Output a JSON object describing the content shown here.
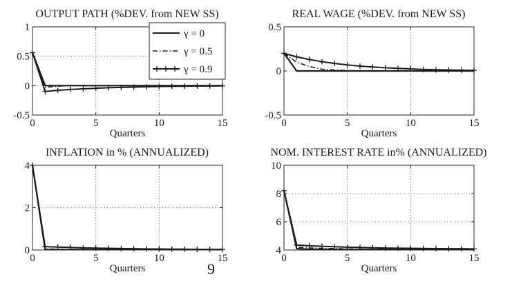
{
  "chart_data": [
    {
      "type": "line",
      "title": "OUTPUT PATH (%DEV. from NEW SS)",
      "xlabel": "Quarters",
      "ylabel": "",
      "xlim": [
        0,
        15
      ],
      "ylim": [
        -0.5,
        1
      ],
      "xticks": [
        "0",
        "5",
        "10",
        "15"
      ],
      "yticks": [
        "-0.5",
        "0",
        "0.5",
        "1"
      ],
      "grid": true,
      "legend": "top-right",
      "x": [
        0,
        1,
        2,
        3,
        4,
        5,
        6,
        7,
        8,
        9,
        10,
        11,
        12,
        13,
        14,
        15
      ],
      "series": [
        {
          "name": "γ = 0",
          "style": "solid",
          "values": [
            0.56,
            0,
            0,
            0,
            0,
            0,
            0,
            0,
            0,
            0,
            0,
            0,
            0,
            0,
            0,
            0
          ]
        },
        {
          "name": "γ = 0.5",
          "style": "dashdot",
          "values": [
            0.56,
            -0.03,
            -0.01,
            0,
            0,
            0,
            0,
            0,
            0,
            0,
            0,
            0,
            0,
            0,
            0,
            0
          ]
        },
        {
          "name": "γ = 0.9",
          "style": "plus",
          "values": [
            0.56,
            -0.1,
            -0.08,
            -0.065,
            -0.055,
            -0.045,
            -0.035,
            -0.03,
            -0.025,
            -0.02,
            -0.015,
            -0.012,
            -0.01,
            -0.008,
            -0.006,
            -0.005
          ]
        }
      ]
    },
    {
      "type": "line",
      "title": "REAL WAGE (%DEV. from NEW SS)",
      "xlabel": "Quarters",
      "ylabel": "",
      "xlim": [
        0,
        15
      ],
      "ylim": [
        -0.5,
        0.5
      ],
      "xticks": [
        "0",
        "5",
        "10",
        "15"
      ],
      "yticks": [
        "-0.5",
        "0",
        "0.5"
      ],
      "grid": true,
      "x": [
        0,
        1,
        2,
        3,
        4,
        5,
        6,
        7,
        8,
        9,
        10,
        11,
        12,
        13,
        14,
        15
      ],
      "series": [
        {
          "style": "solid",
          "values": [
            0.2,
            0,
            0,
            0,
            0,
            0,
            0,
            0,
            0,
            0,
            0,
            0,
            0,
            0,
            0,
            0
          ]
        },
        {
          "style": "dashdot",
          "values": [
            0.2,
            0.1,
            0.05,
            0.02,
            0.01,
            0.005,
            0,
            0,
            0,
            0,
            0,
            0,
            0,
            0,
            0,
            0
          ]
        },
        {
          "style": "plus",
          "values": [
            0.2,
            0.16,
            0.13,
            0.105,
            0.085,
            0.068,
            0.055,
            0.045,
            0.036,
            0.029,
            0.023,
            0.018,
            0.014,
            0.011,
            0.009,
            0.007
          ]
        }
      ]
    },
    {
      "type": "line",
      "title": "INFLATION in % (ANNUALIZED)",
      "xlabel": "Quarters",
      "ylabel": "",
      "xlim": [
        0,
        15
      ],
      "ylim": [
        0,
        4
      ],
      "xticks": [
        "0",
        "5",
        "10",
        "15"
      ],
      "yticks": [
        "0",
        "2",
        "4"
      ],
      "grid": true,
      "x": [
        0,
        1,
        2,
        3,
        4,
        5,
        6,
        7,
        8,
        9,
        10,
        11,
        12,
        13,
        14,
        15
      ],
      "series": [
        {
          "style": "solid",
          "values": [
            4,
            0.02,
            0.02,
            0.02,
            0.02,
            0.02,
            0.02,
            0.02,
            0.02,
            0.02,
            0.02,
            0.02,
            0.02,
            0.02,
            0.02,
            0.02
          ]
        },
        {
          "style": "dashdot",
          "values": [
            4,
            0.05,
            0.04,
            0.03,
            0.03,
            0.02,
            0.02,
            0.02,
            0.02,
            0.02,
            0.02,
            0.02,
            0.02,
            0.02,
            0.02,
            0.02
          ]
        },
        {
          "style": "plus",
          "values": [
            4,
            0.16,
            0.14,
            0.12,
            0.1,
            0.09,
            0.08,
            0.07,
            0.06,
            0.05,
            0.05,
            0.04,
            0.04,
            0.03,
            0.03,
            0.03
          ]
        }
      ]
    },
    {
      "type": "line",
      "title": "NOM. INTEREST RATE in% (ANNUALIZED)",
      "xlabel": "Quarters",
      "ylabel": "",
      "xlim": [
        0,
        15
      ],
      "ylim": [
        4,
        10
      ],
      "xticks": [
        "0",
        "5",
        "10",
        "15"
      ],
      "yticks": [
        "4",
        "6",
        "8",
        "10"
      ],
      "grid": true,
      "x": [
        0,
        1,
        2,
        3,
        4,
        5,
        6,
        7,
        8,
        9,
        10,
        11,
        12,
        13,
        14,
        15
      ],
      "series": [
        {
          "style": "solid",
          "values": [
            8.2,
            4.1,
            4.05,
            4.05,
            4.04,
            4.04,
            4.04,
            4.04,
            4.03,
            4.03,
            4.03,
            4.03,
            4.03,
            4.03,
            4.03,
            4.03
          ]
        },
        {
          "style": "dashdot",
          "values": [
            8.2,
            4.2,
            4.15,
            4.12,
            4.1,
            4.08,
            4.07,
            4.06,
            4.06,
            4.05,
            4.05,
            4.05,
            4.04,
            4.04,
            4.04,
            4.04
          ]
        },
        {
          "style": "plus",
          "values": [
            8.2,
            4.35,
            4.3,
            4.26,
            4.23,
            4.2,
            4.18,
            4.16,
            4.14,
            4.13,
            4.12,
            4.11,
            4.1,
            4.09,
            4.09,
            4.08
          ]
        }
      ]
    }
  ],
  "page_mark": "9"
}
